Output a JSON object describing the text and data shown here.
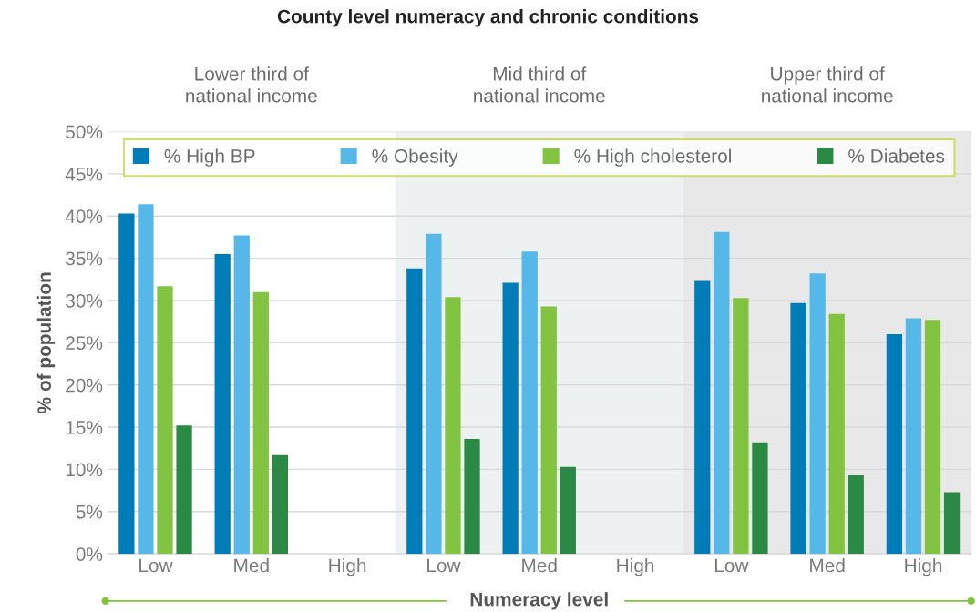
{
  "chart_data": [
    {
      "type": "bar",
      "title": "County level numeracy and chronic conditions",
      "subtitle": "Lower third of\nnational income",
      "ylabel": "% of population",
      "categories": [
        "Low",
        "Med",
        "High"
      ],
      "series": [
        {
          "name": "% High BP",
          "color": "#007cb7",
          "values": [
            40.3,
            35.5,
            null
          ]
        },
        {
          "name": "% Obesity",
          "color": "#55b8e8",
          "values": [
            41.4,
            37.7,
            null
          ]
        },
        {
          "name": "% High cholesterol",
          "color": "#82c341",
          "values": [
            31.7,
            31.0,
            null
          ]
        },
        {
          "name": "% Diabetes",
          "color": "#2a8a43",
          "values": [
            15.2,
            11.7,
            null
          ]
        }
      ],
      "ylim": [
        0,
        50
      ],
      "yticks": [
        {
          "value": 0,
          "label": "0%"
        },
        {
          "value": 5,
          "label": "5%"
        },
        {
          "value": 10,
          "label": "10%"
        },
        {
          "value": 15,
          "label": "15%"
        },
        {
          "value": 20,
          "label": "20%"
        },
        {
          "value": 25,
          "label": "25%"
        },
        {
          "value": 30,
          "label": "30%"
        },
        {
          "value": 35,
          "label": "35%"
        },
        {
          "value": 40,
          "label": "40%"
        },
        {
          "value": 45,
          "label": "45%"
        },
        {
          "value": 50,
          "label": "50%"
        }
      ],
      "grid": "y",
      "legend": "top"
    },
    {
      "type": "bar",
      "subtitle": "Mid third of\nnational income",
      "xlabel": "Numeracy level",
      "categories": [
        "Low",
        "Med",
        "High"
      ],
      "series": [
        {
          "color": "#007cb7",
          "values": [
            33.8,
            32.1,
            null
          ]
        },
        {
          "color": "#55b8e8",
          "values": [
            37.9,
            35.8,
            null
          ]
        },
        {
          "color": "#82c341",
          "values": [
            30.4,
            29.3,
            null
          ]
        },
        {
          "color": "#2a8a43",
          "values": [
            13.6,
            10.3,
            null
          ]
        }
      ],
      "ylim": [
        0,
        50
      ],
      "yticks": [
        0,
        5,
        10,
        15,
        20,
        25,
        30,
        35,
        40,
        45,
        50
      ],
      "tick_labels": "x",
      "grid": "y"
    },
    {
      "type": "bar",
      "subtitle": "Upper third of\nnational income",
      "categories": [
        "Low",
        "Med",
        "High"
      ],
      "series": [
        {
          "color": "#007cb7",
          "values": [
            32.3,
            29.7,
            26.0
          ]
        },
        {
          "color": "#55b8e8",
          "values": [
            38.1,
            33.2,
            27.9
          ]
        },
        {
          "color": "#82c341",
          "values": [
            30.3,
            28.4,
            27.7
          ]
        },
        {
          "color": "#2a8a43",
          "values": [
            13.2,
            9.3,
            7.3
          ]
        }
      ],
      "ylim": [
        0,
        50
      ],
      "yticks": [
        0,
        5,
        10,
        15,
        20,
        25,
        30,
        35,
        40,
        45,
        50
      ],
      "tick_labels": "x",
      "grid": "y"
    }
  ]
}
